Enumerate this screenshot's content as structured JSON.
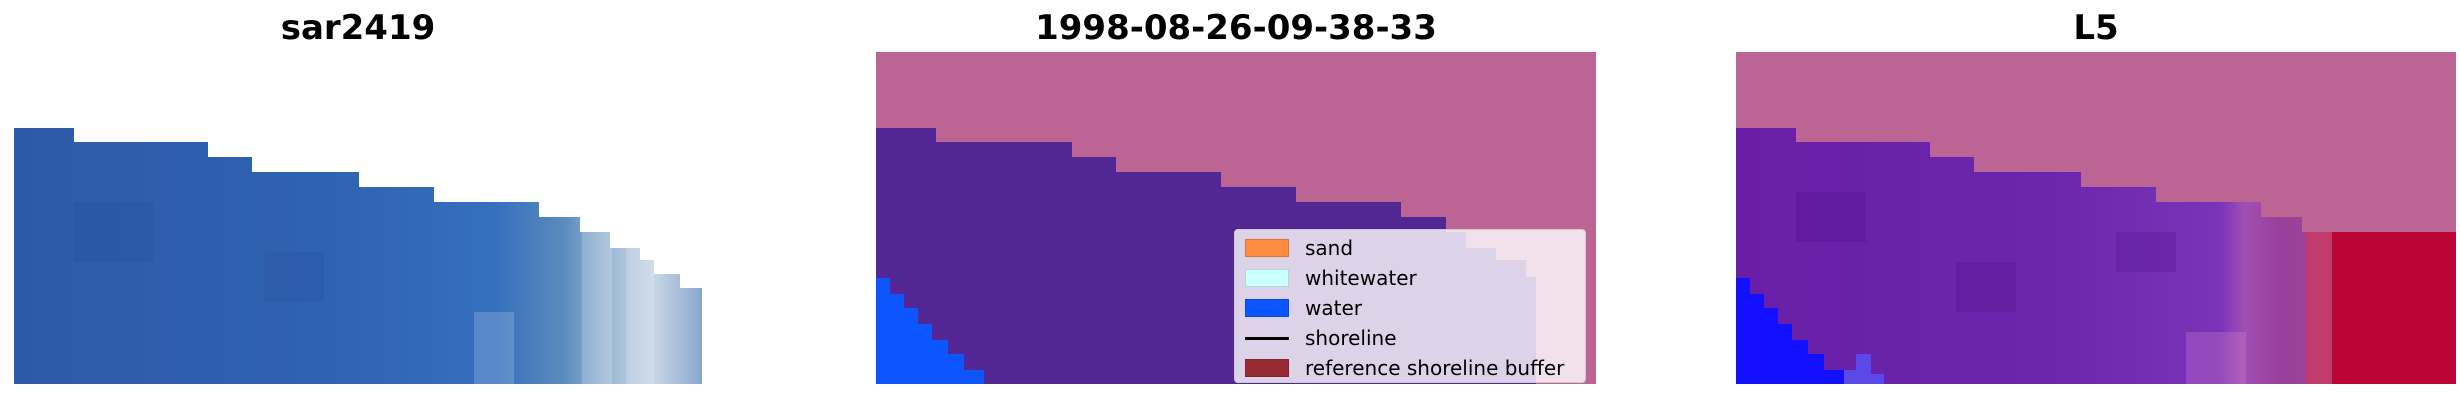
{
  "panels": [
    {
      "title": "sar2419"
    },
    {
      "title": "1998-08-26-09-38-33"
    },
    {
      "title": "L5"
    }
  ],
  "legend": {
    "items": [
      {
        "label": "sand",
        "color": "#ff8c40",
        "kind": "patch"
      },
      {
        "label": "whitewater",
        "color": "#ccffff",
        "kind": "patch"
      },
      {
        "label": "water",
        "color": "#0d55ff",
        "kind": "patch"
      },
      {
        "label": "shoreline",
        "color": "#000000",
        "kind": "line"
      },
      {
        "label": "reference shoreline buffer",
        "color": "#972b35",
        "kind": "patch"
      }
    ]
  },
  "colors": {
    "background": "#ffffff",
    "rgb_water": "#2f62b0",
    "rgb_white": "#dfe7ef",
    "mask_pink": "#bc6594",
    "mask_purple": "#522693",
    "mask_blue": "#0d55ff",
    "index_violet": "#6a1ea8",
    "index_red": "#bb0535",
    "index_blue": "#1210ff"
  }
}
